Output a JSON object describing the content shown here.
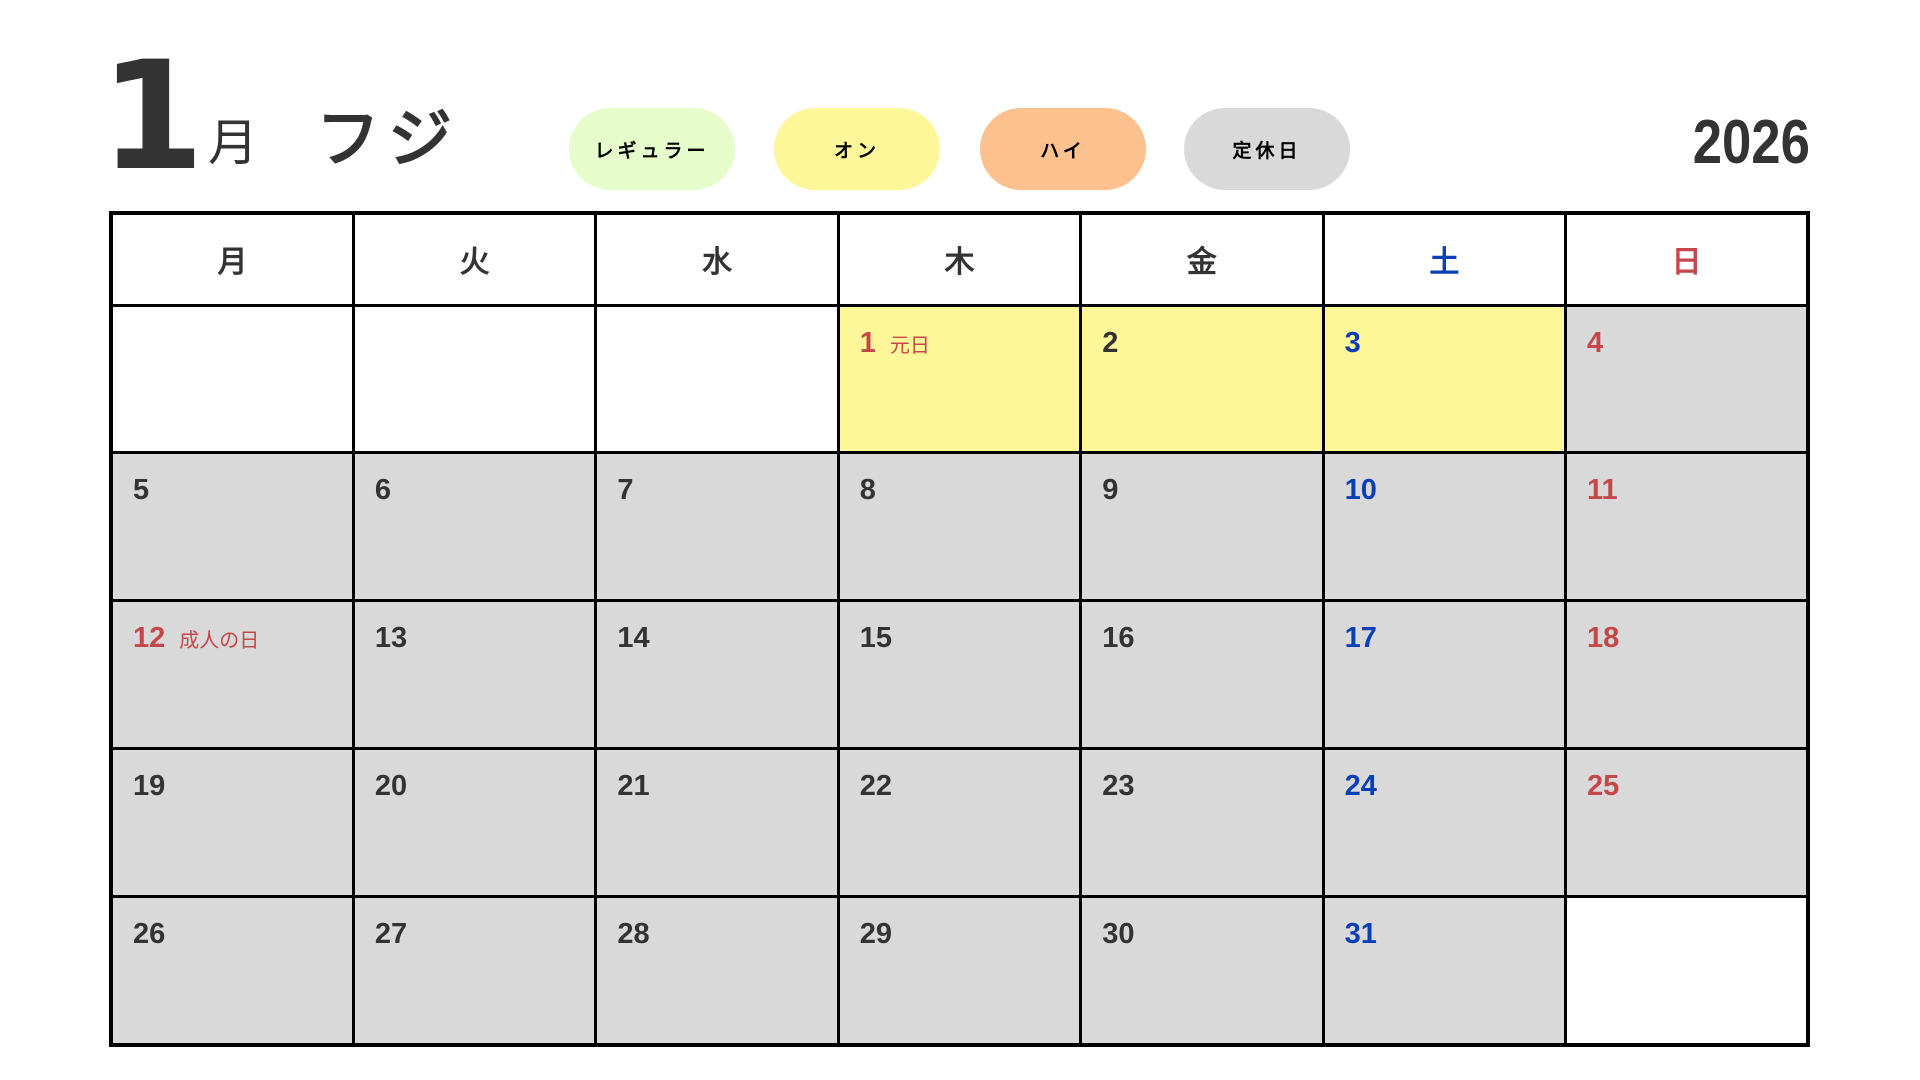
{
  "header": {
    "month": "1",
    "month_suffix": "月",
    "store": "フジ",
    "year": "2026"
  },
  "legend": [
    {
      "label": "レギュラー",
      "color": "#e6fccb"
    },
    {
      "label": "オン",
      "color": "#fef79a"
    },
    {
      "label": "ハイ",
      "color": "#fdc08f"
    },
    {
      "label": "定休日",
      "color": "#d9d9d9"
    }
  ],
  "colors": {
    "saturday": "#0a3fb5",
    "sunday_holiday": "#c6474a",
    "text": "#333333"
  },
  "weekdays": [
    "月",
    "火",
    "水",
    "木",
    "金",
    "土",
    "日"
  ],
  "weeks": [
    [
      null,
      null,
      null,
      {
        "day": "1",
        "type": "on",
        "holiday": "元日"
      },
      {
        "day": "2",
        "type": "on"
      },
      {
        "day": "3",
        "type": "on"
      },
      {
        "day": "4",
        "type": "closed"
      }
    ],
    [
      {
        "day": "5",
        "type": "closed"
      },
      {
        "day": "6",
        "type": "closed"
      },
      {
        "day": "7",
        "type": "closed"
      },
      {
        "day": "8",
        "type": "closed"
      },
      {
        "day": "9",
        "type": "closed"
      },
      {
        "day": "10",
        "type": "closed"
      },
      {
        "day": "11",
        "type": "closed"
      }
    ],
    [
      {
        "day": "12",
        "type": "closed",
        "holiday": "成人の日"
      },
      {
        "day": "13",
        "type": "closed"
      },
      {
        "day": "14",
        "type": "closed"
      },
      {
        "day": "15",
        "type": "closed"
      },
      {
        "day": "16",
        "type": "closed"
      },
      {
        "day": "17",
        "type": "closed"
      },
      {
        "day": "18",
        "type": "closed"
      }
    ],
    [
      {
        "day": "19",
        "type": "closed"
      },
      {
        "day": "20",
        "type": "closed"
      },
      {
        "day": "21",
        "type": "closed"
      },
      {
        "day": "22",
        "type": "closed"
      },
      {
        "day": "23",
        "type": "closed"
      },
      {
        "day": "24",
        "type": "closed"
      },
      {
        "day": "25",
        "type": "closed"
      }
    ],
    [
      {
        "day": "26",
        "type": "closed"
      },
      {
        "day": "27",
        "type": "closed"
      },
      {
        "day": "28",
        "type": "closed"
      },
      {
        "day": "29",
        "type": "closed"
      },
      {
        "day": "30",
        "type": "closed"
      },
      {
        "day": "31",
        "type": "closed"
      },
      null
    ]
  ]
}
